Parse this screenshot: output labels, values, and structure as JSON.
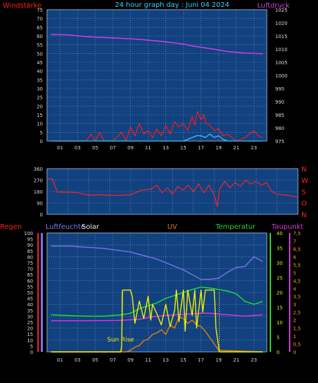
{
  "header": {
    "title": "24 hour graph day : Juni 04 2024",
    "left_label": "Windstärke",
    "right_label": "Luftdruck"
  },
  "bottom_header": {
    "regen": "Regen",
    "luftfeuchte": "Luftfeuchte",
    "solar": "Solar",
    "uv": "UV",
    "temperatur": "Temperatur",
    "taupunkt": "Taupunkt"
  },
  "annotation": {
    "sun_rise": "Sun Rise"
  },
  "colors": {
    "background": "#000000",
    "plot_bg": "#12417f",
    "grid": "#8aa6c8",
    "axis_text": "#d8d8d8",
    "wind": "#ff1a1a",
    "gust": "#33c6ff",
    "pressure": "#c040e0",
    "direction": "#ff2222",
    "rain_axis": "#ff2020",
    "humidity": "#6f73e8",
    "solar": "#f2f200",
    "uv": "#e07a10",
    "temperature": "#23d83a",
    "dewpoint": "#dd33dd",
    "solar_axis": "#e8e800",
    "uv_axis": "#f2a000"
  },
  "chart_data": [
    {
      "type": "line",
      "panel": "wind-pressure",
      "x_ticks": [
        "01",
        "03",
        "05",
        "07",
        "09",
        "11",
        "13",
        "15",
        "17",
        "19",
        "21",
        "23"
      ],
      "left_axis": {
        "label": "Windstärke",
        "ticks": [
          0,
          5,
          10,
          15,
          20,
          25,
          30,
          35,
          40,
          45,
          50,
          55,
          60,
          65,
          70,
          75
        ]
      },
      "right_axis": {
        "label": "Luftdruck",
        "ticks": [
          975,
          980,
          985,
          990,
          995,
          1000,
          1005,
          1010,
          1015,
          1020,
          1025
        ]
      },
      "series": [
        {
          "name": "Luftdruck",
          "axis": "right",
          "x": [
            0,
            2,
            4,
            6,
            8,
            10,
            12,
            14,
            15,
            16,
            18,
            20,
            22,
            24
          ],
          "values": [
            1015.6,
            1015.4,
            1014.7,
            1014.4,
            1014.1,
            1013.7,
            1013.1,
            1012.4,
            1011.9,
            1011.2,
            1010.2,
            1009.1,
            1008.5,
            1008.2
          ]
        },
        {
          "name": "Windstärke",
          "axis": "left",
          "x": [
            0,
            1,
            2,
            3,
            4,
            4.5,
            5,
            5.5,
            6,
            7,
            8,
            8.5,
            9,
            9.5,
            10,
            10.5,
            11,
            11.5,
            12,
            12.5,
            13,
            13.5,
            14,
            14.5,
            15,
            15.5,
            16,
            16.3,
            16.6,
            17,
            17.3,
            17.6,
            18,
            18.5,
            19,
            19.5,
            20,
            21,
            22,
            22.5,
            23,
            23.5,
            24
          ],
          "values": [
            0,
            0,
            0,
            0,
            0,
            4,
            0,
            5,
            0,
            0,
            5,
            0,
            8,
            3,
            10,
            4,
            6,
            2,
            7,
            3,
            9,
            4,
            11,
            8,
            10,
            6,
            14,
            9,
            17,
            12,
            15,
            10,
            9,
            6,
            7,
            3,
            4,
            0,
            2,
            4,
            6,
            3,
            2
          ]
        },
        {
          "name": "Böen",
          "axis": "left",
          "x": [
            0,
            15,
            15.5,
            16,
            16.5,
            17,
            17.5,
            18,
            18.5,
            19,
            19.5,
            20,
            21,
            24
          ],
          "values": [
            0,
            0,
            1,
            2,
            3,
            3,
            2,
            4,
            2,
            3,
            1,
            0,
            0,
            0
          ]
        }
      ],
      "ylim_left": [
        0,
        75
      ],
      "ylim_right": [
        975,
        1025
      ]
    },
    {
      "type": "line",
      "panel": "wind-direction",
      "left_axis": {
        "ticks": [
          0,
          90,
          180,
          270,
          360
        ]
      },
      "right_axis": {
        "labels": [
          "N",
          "W",
          "S",
          "O",
          "N"
        ]
      },
      "series": [
        {
          "name": "Windrichtung",
          "x": [
            0,
            0.5,
            1,
            2,
            3,
            4,
            5,
            6,
            7,
            8,
            9,
            10,
            10.5,
            11,
            11.5,
            12,
            12.5,
            13,
            13.5,
            14,
            14.5,
            15,
            15.5,
            16,
            16.3,
            16.5,
            17,
            17.5,
            18,
            18.5,
            19,
            19.5,
            20,
            20.5,
            21,
            21.5,
            22,
            23,
            24
          ],
          "values": [
            280,
            280,
            175,
            175,
            170,
            150,
            155,
            150,
            150,
            155,
            190,
            200,
            230,
            170,
            210,
            160,
            220,
            190,
            230,
            180,
            240,
            170,
            230,
            150,
            60,
            200,
            260,
            210,
            250,
            220,
            270,
            240,
            260,
            230,
            250,
            180,
            160,
            150,
            135
          ]
        }
      ],
      "ylim": [
        0,
        360
      ]
    },
    {
      "type": "line",
      "panel": "weather",
      "x_ticks": [
        "01",
        "03",
        "05",
        "07",
        "09",
        "11",
        "13",
        "15",
        "17",
        "19",
        "21",
        "23"
      ],
      "left_axis": {
        "labels": [
          "Regen",
          "Luftfeuchte"
        ],
        "ticks": [
          0,
          5,
          10,
          15,
          20,
          25,
          30,
          35,
          40,
          45,
          50,
          55,
          60,
          65,
          70,
          75,
          80,
          85,
          90,
          95,
          100
        ]
      },
      "right_axis_temperature": {
        "label": "Temperatur",
        "ticks": [
          0,
          5,
          10,
          15,
          20,
          25,
          30,
          35,
          40
        ]
      },
      "right_axis_uv": {
        "label": "Taupunkt",
        "ticks": [
          "0",
          "0,5",
          "1",
          "1,5",
          "2",
          "2,5",
          "3",
          "3,5",
          "4",
          "4,5",
          "5",
          "5,5",
          "6",
          "6,5",
          "7",
          "7,5"
        ]
      },
      "series": [
        {
          "name": "Luftfeuchte",
          "axis": "left",
          "x": [
            0,
            2,
            4,
            6,
            7,
            8,
            9,
            10,
            11,
            12,
            13,
            14,
            15,
            16,
            17,
            18,
            19,
            20,
            21,
            22,
            23,
            24
          ],
          "values": [
            89,
            89,
            88,
            87,
            86,
            85,
            84,
            82,
            80,
            78,
            75,
            72,
            69,
            65,
            61,
            61,
            62,
            67,
            71,
            72,
            80,
            76
          ]
        },
        {
          "name": "Temperatur",
          "axis": "temp",
          "x": [
            0,
            2,
            4,
            6,
            8,
            9,
            10,
            11,
            12,
            13,
            14,
            15,
            16,
            17,
            18,
            19,
            20,
            21,
            22,
            23,
            24
          ],
          "values": [
            12.5,
            12.2,
            12.0,
            12.0,
            12.5,
            13,
            14.5,
            15.5,
            16.5,
            18,
            19,
            20,
            21,
            21.8,
            21.5,
            21,
            20.5,
            19.5,
            17,
            16,
            17
          ]
        },
        {
          "name": "Taupunkt",
          "axis": "temp",
          "x": [
            0,
            4,
            8,
            10,
            12,
            14,
            16,
            17,
            18,
            20,
            22,
            24
          ],
          "values": [
            10.5,
            10.5,
            10.6,
            11,
            12,
            12.5,
            12.8,
            13,
            13,
            12.5,
            12,
            12.5
          ]
        },
        {
          "name": "Solar",
          "axis": "uv",
          "x": [
            0,
            7.9,
            8,
            8.1,
            9,
            9.2,
            9.5,
            10,
            10.5,
            11,
            11.3,
            11.5,
            12,
            12.5,
            13,
            13.5,
            14,
            14.2,
            14.5,
            15,
            15.2,
            15.5,
            16,
            16.3,
            16.5,
            17,
            17.2,
            17.5,
            18,
            18.5,
            18.7,
            19,
            19.1,
            24
          ],
          "values": [
            0,
            0,
            0.4,
            3.9,
            3.9,
            3.5,
            1.8,
            3.2,
            2.1,
            3.5,
            2.0,
            3.0,
            2.4,
            1.7,
            3.0,
            1.6,
            2.6,
            3.9,
            1.9,
            3.9,
            1.3,
            3.9,
            2.3,
            3.9,
            1.5,
            3.9,
            2.5,
            3.9,
            3.9,
            3.9,
            1.5,
            0.3,
            0,
            0
          ]
        },
        {
          "name": "UV",
          "axis": "uv",
          "x": [
            0,
            8.5,
            9,
            9.5,
            10,
            10.5,
            11,
            11.5,
            12,
            12.5,
            13,
            13.5,
            14,
            14.5,
            15,
            15.5,
            16,
            16.5,
            17,
            17.5,
            18,
            18.5,
            19,
            24
          ],
          "values": [
            0,
            0,
            0.1,
            0.3,
            0.4,
            0.7,
            0.8,
            1.1,
            1.2,
            1.4,
            1.1,
            1.7,
            1.5,
            2.2,
            2.1,
            1.8,
            2.0,
            1.7,
            1.6,
            1.3,
            0.9,
            0.5,
            0.1,
            0
          ]
        }
      ],
      "ylim_left": [
        0,
        100
      ],
      "ylim_temp": [
        0,
        40
      ],
      "ylim_uv": [
        0,
        7.5
      ]
    }
  ]
}
